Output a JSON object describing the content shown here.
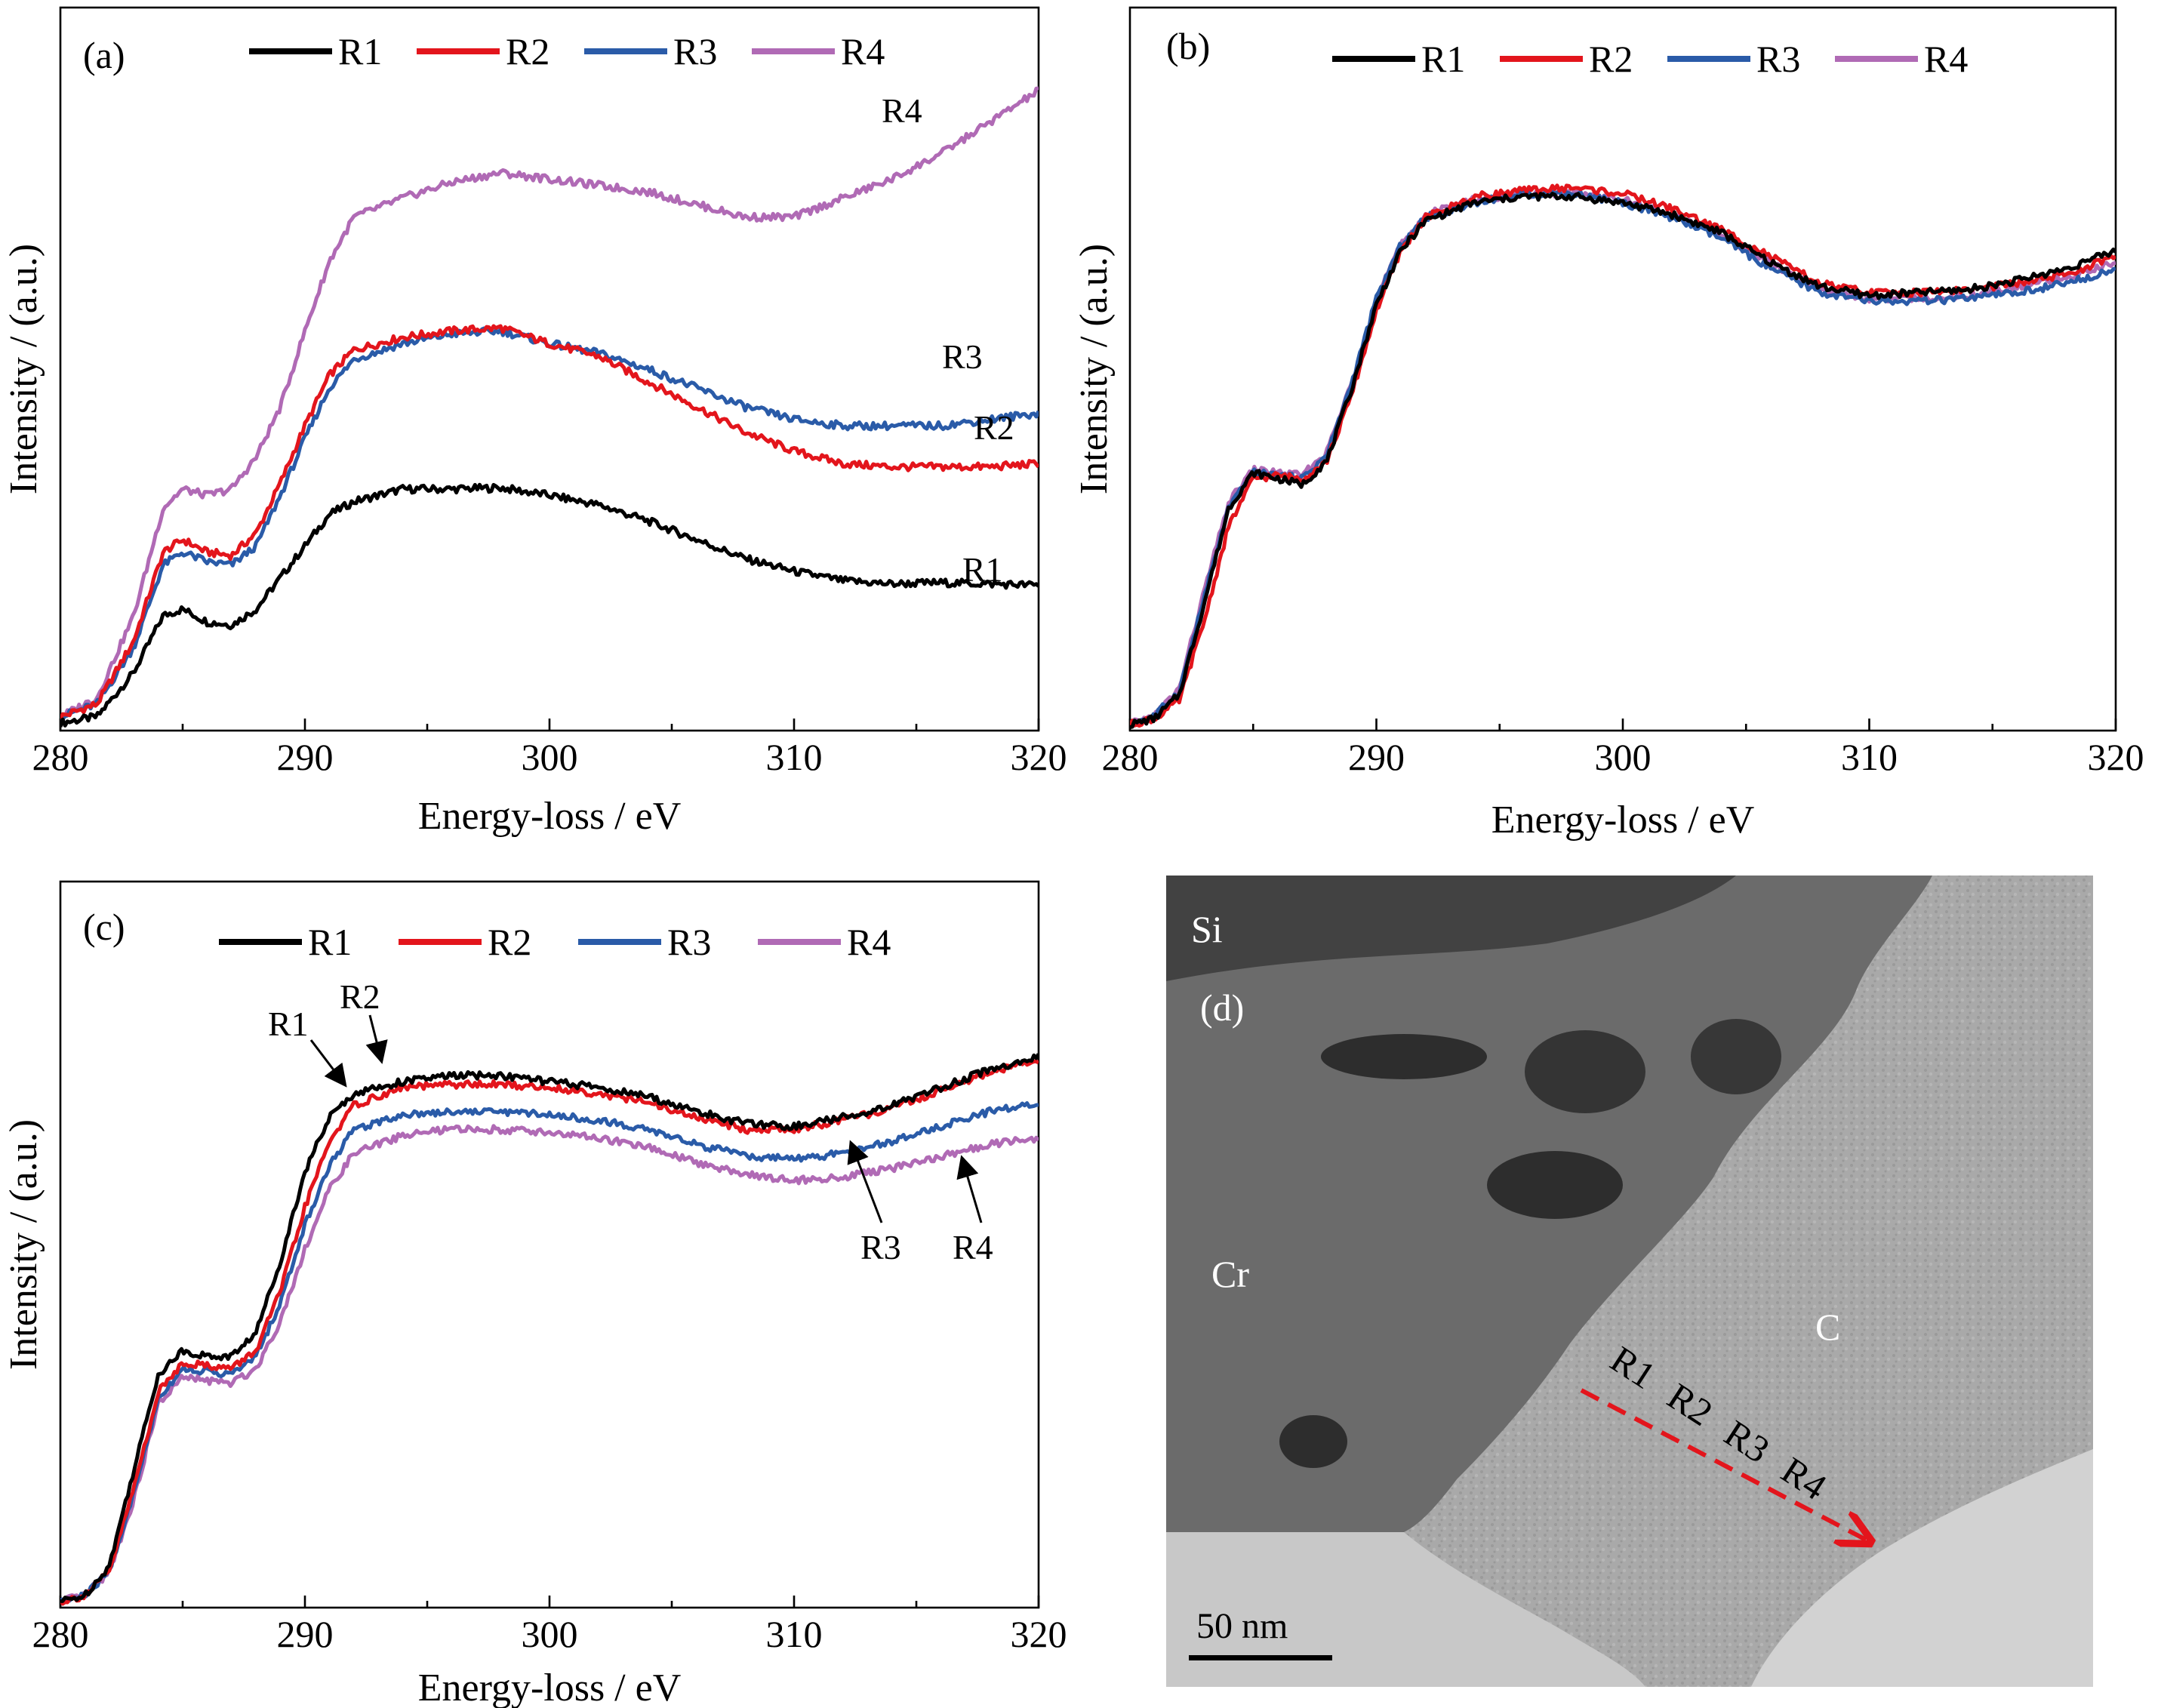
{
  "colors": {
    "R1": "#000000",
    "R2": "#e3151c",
    "R3": "#2a5ba8",
    "R4": "#b06ab5"
  },
  "chart_data": [
    {
      "panel": "(a)",
      "type": "line",
      "xlabel": "Energy-loss / eV",
      "ylabel": "Intensity / (a.u.)",
      "xlim": [
        280,
        320
      ],
      "xticks": [
        "280",
        "290",
        "300",
        "310",
        "320"
      ],
      "ylim": [
        0,
        1
      ],
      "legend": [
        "R1",
        "R2",
        "R3",
        "R4"
      ],
      "legend_position": "top",
      "series": [
        {
          "name": "R1",
          "x": [
            280,
            281.5,
            283,
            284.2,
            285,
            286,
            287,
            288,
            289,
            290,
            291,
            292,
            294,
            296,
            298,
            300,
            302,
            304,
            306,
            308,
            310,
            312,
            314,
            316,
            318,
            320
          ],
          "y": [
            0.0,
            0.01,
            0.08,
            0.17,
            0.18,
            0.16,
            0.155,
            0.18,
            0.23,
            0.28,
            0.33,
            0.35,
            0.37,
            0.37,
            0.372,
            0.36,
            0.345,
            0.32,
            0.29,
            0.26,
            0.24,
            0.225,
            0.22,
            0.222,
            0.22,
            0.218
          ]
        },
        {
          "name": "R2",
          "x": [
            280,
            281.5,
            283,
            284.2,
            285,
            286,
            287,
            288,
            289,
            290,
            291,
            292,
            294,
            296,
            298,
            300,
            302,
            304,
            306,
            308,
            310,
            312,
            314,
            316,
            318,
            320
          ],
          "y": [
            0.01,
            0.03,
            0.13,
            0.27,
            0.29,
            0.27,
            0.265,
            0.3,
            0.38,
            0.47,
            0.55,
            0.59,
            0.61,
            0.62,
            0.625,
            0.6,
            0.58,
            0.54,
            0.5,
            0.46,
            0.43,
            0.41,
            0.405,
            0.405,
            0.405,
            0.41
          ]
        },
        {
          "name": "R3",
          "x": [
            280,
            281.5,
            283,
            284.2,
            285,
            286,
            287,
            288,
            289,
            290,
            291,
            292,
            294,
            296,
            298,
            300,
            302,
            304,
            306,
            308,
            310,
            312,
            314,
            316,
            318,
            320
          ],
          "y": [
            0.01,
            0.03,
            0.12,
            0.25,
            0.27,
            0.255,
            0.25,
            0.28,
            0.36,
            0.45,
            0.53,
            0.575,
            0.6,
            0.615,
            0.62,
            0.6,
            0.585,
            0.56,
            0.53,
            0.5,
            0.48,
            0.47,
            0.47,
            0.47,
            0.48,
            0.49
          ]
        },
        {
          "name": "R4",
          "x": [
            280,
            281.5,
            283,
            284.2,
            285,
            286,
            287,
            288,
            289,
            290,
            291,
            292,
            294,
            296,
            298,
            300,
            302,
            304,
            306,
            308,
            310,
            312,
            314,
            316,
            318,
            320
          ],
          "y": [
            0.01,
            0.04,
            0.17,
            0.34,
            0.37,
            0.36,
            0.37,
            0.42,
            0.5,
            0.62,
            0.73,
            0.8,
            0.83,
            0.855,
            0.87,
            0.86,
            0.85,
            0.84,
            0.82,
            0.8,
            0.8,
            0.83,
            0.86,
            0.9,
            0.95,
            1.0
          ]
        }
      ],
      "annotations": [
        "R4",
        "R3",
        "R2",
        "R1"
      ]
    },
    {
      "panel": "(b)",
      "type": "line",
      "xlabel": "Energy-loss / eV",
      "ylabel": "Intensity / (a.u.)",
      "xlim": [
        280,
        320
      ],
      "xticks": [
        "280",
        "290",
        "300",
        "310",
        "320"
      ],
      "ylim": [
        0,
        1
      ],
      "legend": [
        "R1",
        "R2",
        "R3",
        "R4"
      ],
      "legend_position": "top",
      "series": [
        {
          "name": "R1",
          "x": [
            280,
            281,
            282,
            283,
            284,
            285,
            286,
            287,
            288,
            289,
            290,
            291,
            292,
            294,
            296,
            298,
            300,
            302,
            304,
            306,
            308,
            310,
            312,
            314,
            316,
            318,
            320
          ],
          "y": [
            0.0,
            0.01,
            0.05,
            0.2,
            0.36,
            0.42,
            0.41,
            0.4,
            0.44,
            0.56,
            0.7,
            0.79,
            0.84,
            0.87,
            0.88,
            0.88,
            0.87,
            0.85,
            0.82,
            0.77,
            0.73,
            0.715,
            0.72,
            0.725,
            0.74,
            0.76,
            0.79
          ]
        },
        {
          "name": "R2",
          "x": [
            280,
            281,
            282,
            283,
            284,
            285,
            286,
            287,
            288,
            289,
            290,
            291,
            292,
            294,
            296,
            298,
            300,
            302,
            304,
            306,
            308,
            310,
            312,
            314,
            316,
            318,
            320
          ],
          "y": [
            0.0,
            0.01,
            0.04,
            0.17,
            0.33,
            0.41,
            0.415,
            0.41,
            0.44,
            0.55,
            0.69,
            0.79,
            0.845,
            0.88,
            0.89,
            0.895,
            0.885,
            0.86,
            0.825,
            0.78,
            0.735,
            0.72,
            0.72,
            0.725,
            0.735,
            0.75,
            0.78
          ]
        },
        {
          "name": "R3",
          "x": [
            280,
            281,
            282,
            283,
            284,
            285,
            286,
            287,
            288,
            289,
            290,
            291,
            292,
            294,
            296,
            298,
            300,
            302,
            304,
            306,
            308,
            310,
            312,
            314,
            316,
            318,
            320
          ],
          "y": [
            0.0,
            0.015,
            0.055,
            0.21,
            0.36,
            0.42,
            0.415,
            0.41,
            0.45,
            0.57,
            0.71,
            0.8,
            0.845,
            0.87,
            0.885,
            0.885,
            0.87,
            0.845,
            0.81,
            0.76,
            0.72,
            0.705,
            0.705,
            0.71,
            0.72,
            0.735,
            0.76
          ]
        },
        {
          "name": "R4",
          "x": [
            280,
            281,
            282,
            283,
            284,
            285,
            286,
            287,
            288,
            289,
            290,
            291,
            292,
            294,
            296,
            298,
            300,
            302,
            304,
            306,
            308,
            310,
            312,
            314,
            316,
            318,
            320
          ],
          "y": [
            0.0,
            0.015,
            0.06,
            0.22,
            0.37,
            0.425,
            0.42,
            0.415,
            0.455,
            0.57,
            0.71,
            0.8,
            0.85,
            0.875,
            0.885,
            0.885,
            0.875,
            0.85,
            0.815,
            0.77,
            0.725,
            0.71,
            0.71,
            0.715,
            0.73,
            0.745,
            0.77
          ]
        }
      ]
    },
    {
      "panel": "(c)",
      "type": "line",
      "xlabel": "Energy-loss / eV",
      "ylabel": "Intensity / (a.u.)",
      "xlim": [
        280,
        320
      ],
      "xticks": [
        "280",
        "290",
        "300",
        "310",
        "320"
      ],
      "ylim": [
        0,
        1
      ],
      "legend": [
        "R1",
        "R2",
        "R3",
        "R4"
      ],
      "legend_position": "top",
      "series": [
        {
          "name": "R1",
          "x": [
            280,
            281,
            282,
            283,
            284,
            285,
            286,
            287,
            288,
            289,
            290,
            291,
            292,
            294,
            296,
            298,
            300,
            302,
            304,
            306,
            308,
            310,
            312,
            314,
            316,
            318,
            320
          ],
          "y": [
            0.0,
            0.01,
            0.06,
            0.22,
            0.38,
            0.42,
            0.41,
            0.41,
            0.45,
            0.57,
            0.72,
            0.81,
            0.85,
            0.87,
            0.88,
            0.88,
            0.87,
            0.86,
            0.845,
            0.82,
            0.8,
            0.795,
            0.81,
            0.83,
            0.86,
            0.89,
            0.91
          ]
        },
        {
          "name": "R2",
          "x": [
            280,
            281,
            282,
            283,
            284,
            285,
            286,
            287,
            288,
            289,
            290,
            291,
            292,
            294,
            296,
            298,
            300,
            302,
            304,
            306,
            308,
            310,
            312,
            314,
            316,
            318,
            320
          ],
          "y": [
            0.0,
            0.01,
            0.05,
            0.19,
            0.35,
            0.4,
            0.395,
            0.39,
            0.42,
            0.52,
            0.66,
            0.77,
            0.83,
            0.86,
            0.865,
            0.865,
            0.86,
            0.85,
            0.835,
            0.81,
            0.79,
            0.79,
            0.805,
            0.825,
            0.855,
            0.885,
            0.905
          ]
        },
        {
          "name": "R3",
          "x": [
            280,
            281,
            282,
            283,
            284,
            285,
            286,
            287,
            288,
            289,
            290,
            291,
            292,
            294,
            296,
            298,
            300,
            302,
            304,
            306,
            308,
            310,
            312,
            314,
            316,
            318,
            320
          ],
          "y": [
            0.0,
            0.01,
            0.05,
            0.18,
            0.34,
            0.39,
            0.385,
            0.38,
            0.41,
            0.5,
            0.63,
            0.73,
            0.79,
            0.815,
            0.82,
            0.82,
            0.815,
            0.805,
            0.79,
            0.765,
            0.745,
            0.74,
            0.75,
            0.77,
            0.795,
            0.82,
            0.835
          ]
        },
        {
          "name": "R4",
          "x": [
            280,
            281,
            282,
            283,
            284,
            285,
            286,
            287,
            288,
            289,
            290,
            291,
            292,
            294,
            296,
            298,
            300,
            302,
            304,
            306,
            308,
            310,
            312,
            314,
            316,
            318,
            320
          ],
          "y": [
            0.0,
            0.01,
            0.05,
            0.17,
            0.33,
            0.375,
            0.37,
            0.365,
            0.39,
            0.47,
            0.59,
            0.69,
            0.75,
            0.78,
            0.79,
            0.79,
            0.785,
            0.775,
            0.76,
            0.735,
            0.715,
            0.705,
            0.71,
            0.725,
            0.745,
            0.765,
            0.775
          ]
        }
      ],
      "annotations": [
        "R1",
        "R2",
        "R3",
        "R4"
      ]
    }
  ],
  "micrograph": {
    "panel": "(d)",
    "labels": {
      "si": "Si",
      "cr": "Cr",
      "c": "C",
      "tag": "(d)"
    },
    "path_labels": [
      "R1",
      "R2",
      "R3",
      "R4"
    ],
    "scale_bar": "50 nm"
  }
}
